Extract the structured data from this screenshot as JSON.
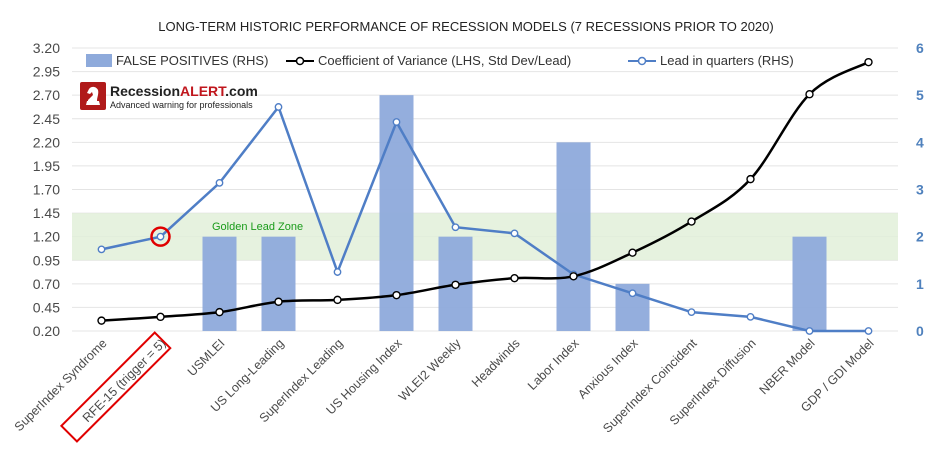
{
  "colors": {
    "bar": "#8eaadb",
    "blue_line": "#4f7ec6",
    "black_line": "#000000",
    "zone_fill": "#e2f0d9",
    "zone_text": "#1a9b1a",
    "highlight": "#e00000",
    "right_axis": "#4f81bd"
  },
  "logo": {
    "brand_black": "Recession",
    "brand_red": "ALERT",
    "brand_suffix": ".com",
    "tagline": "Advanced warning for professionals",
    "icon": "knight-chess-piece-icon"
  },
  "chart_data": {
    "type": "bar+line",
    "title": "LONG-TERM HISTORIC PERFORMANCE OF RECESSION MODELS (7 RECESSIONS PRIOR TO 2020)",
    "categories": [
      "SuperIndex Syndrome",
      "RFE-15 (trigger = 5)",
      "USMLEI",
      "US Long-Leading",
      "SuperIndex Leading",
      "US Housing Index",
      "WLEI2 Weekly",
      "Headwinds",
      "Labor Index",
      "Anxious Index",
      "SuperIndex Coincident",
      "SuperIndex Diffusion",
      "NBER Model",
      "GDP / GDI Model"
    ],
    "highlighted_category": "RFE-15 (trigger = 5)",
    "left_axis": {
      "ylim": [
        0.2,
        3.2
      ],
      "ticks": [
        "0.20",
        "0.45",
        "0.70",
        "0.95",
        "1.20",
        "1.45",
        "1.70",
        "1.95",
        "2.20",
        "2.45",
        "2.70",
        "2.95",
        "3.20"
      ]
    },
    "right_axis": {
      "ylim": [
        0,
        6
      ],
      "ticks": [
        "0",
        "1",
        "2",
        "3",
        "4",
        "5",
        "6"
      ]
    },
    "series": [
      {
        "name": "FALSE POSITIVES (RHS)",
        "type": "bar",
        "axis": "right",
        "values": [
          0,
          0,
          2,
          2,
          0,
          5,
          2,
          0,
          4,
          1,
          0,
          0,
          2,
          0
        ]
      },
      {
        "name": "Coefficient of Variance (LHS, Std Dev/Lead)",
        "type": "line",
        "axis": "left",
        "values": [
          0.31,
          0.35,
          0.4,
          0.51,
          0.53,
          0.58,
          0.69,
          0.76,
          0.78,
          1.03,
          1.36,
          1.81,
          2.71,
          3.05
        ]
      },
      {
        "name": "Lead in quarters (RHS)",
        "type": "line",
        "axis": "right",
        "values": [
          1.73,
          2.0,
          3.14,
          4.75,
          1.25,
          4.43,
          2.2,
          2.07,
          1.2,
          0.8,
          0.4,
          0.3,
          0.0,
          0.0
        ]
      }
    ],
    "annotations": [
      {
        "text": "Golden Lead Zone",
        "band_left": [
          0.95,
          1.45
        ]
      }
    ],
    "grid": "horizontal",
    "legend": "top"
  }
}
